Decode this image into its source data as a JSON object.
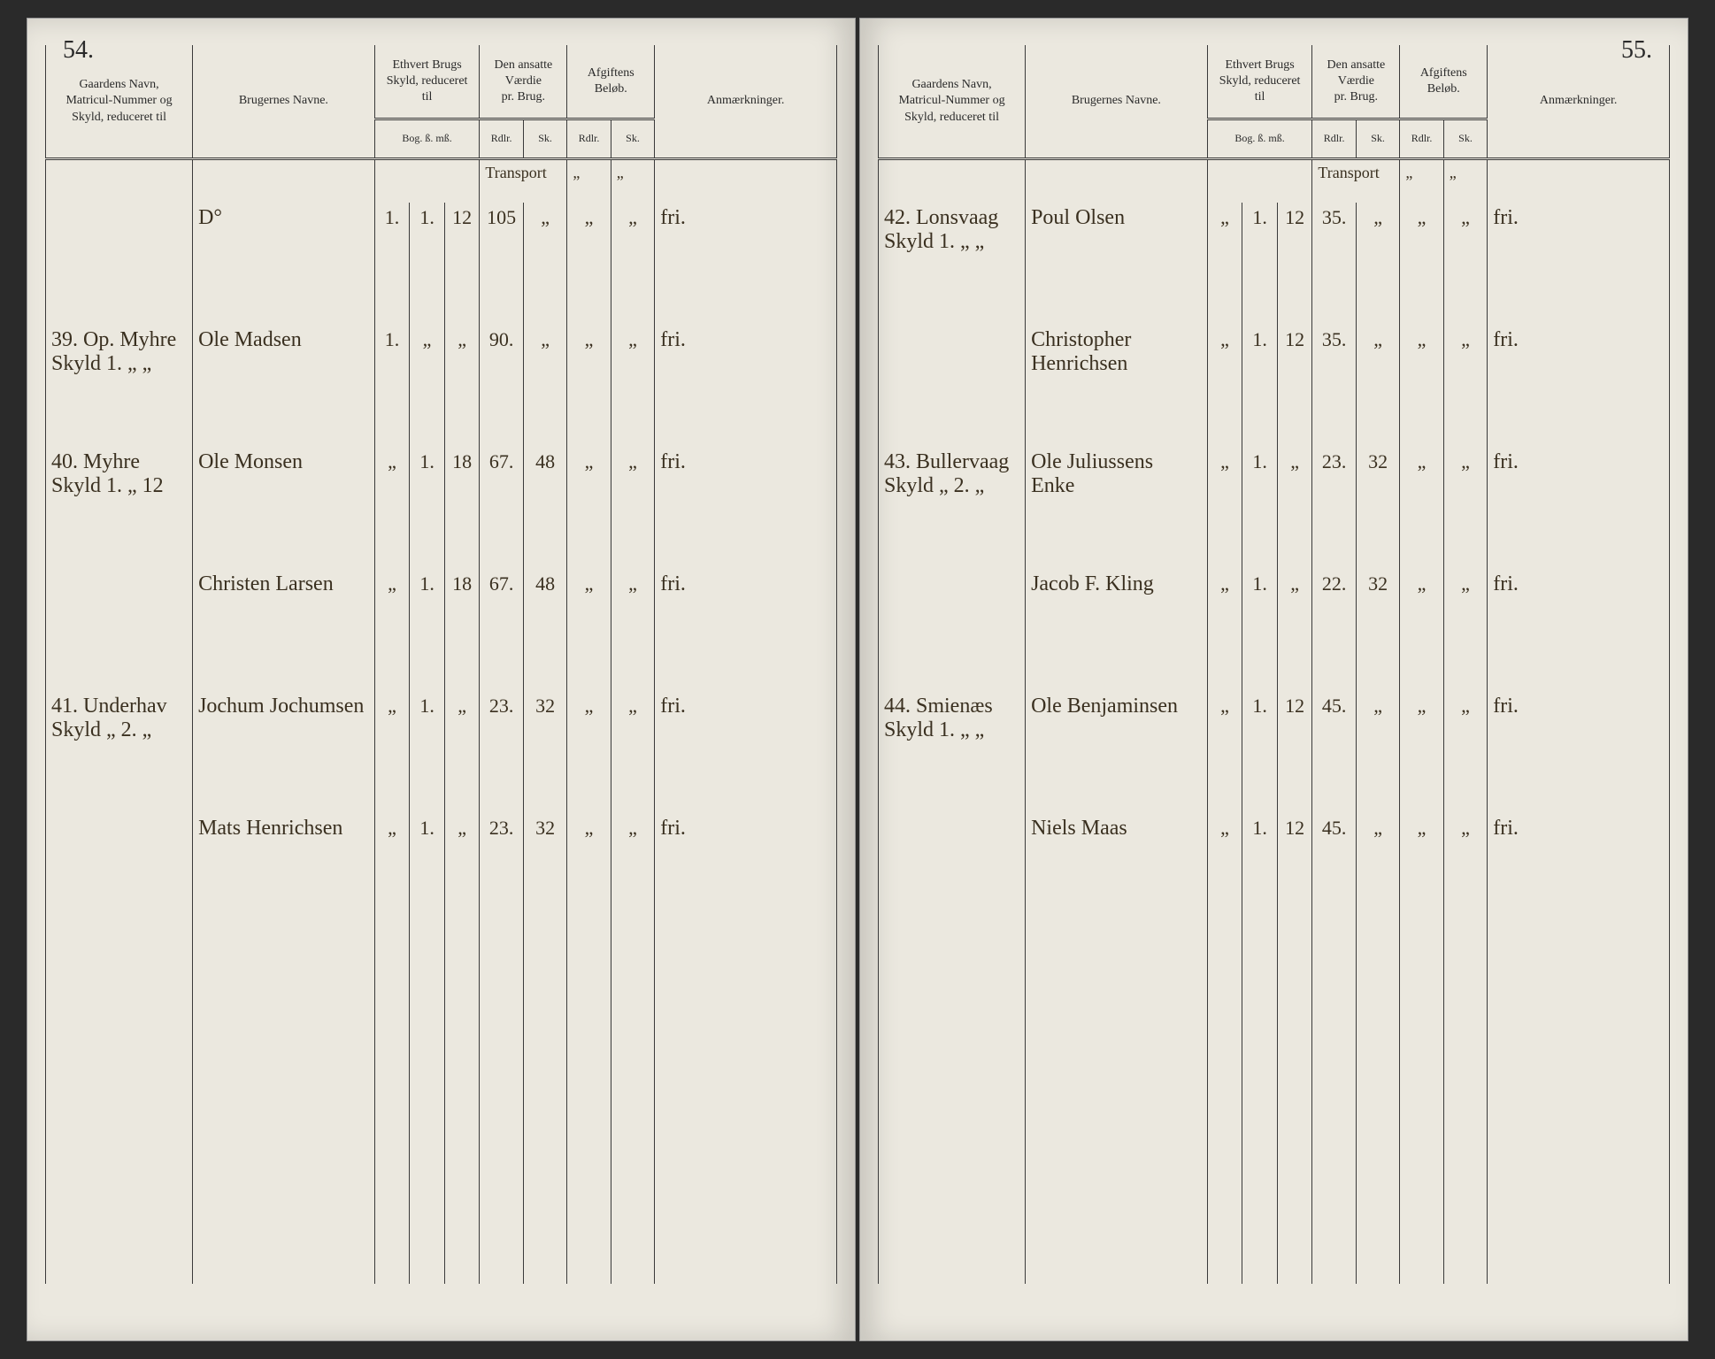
{
  "book": {
    "left_page_number": "54.",
    "right_page_number": "55.",
    "headers": {
      "gaard": "Gaardens Navn,\nMatricul-Nummer og\nSkyld, reduceret til",
      "bruger": "Brugernes Navne.",
      "skyld": "Ethvert Brugs\nSkyld, reduceret\ntil",
      "vaerdi": "Den ansatte\nVærdie\npr. Brug.",
      "afgift": "Afgiftens\nBeløb.",
      "anm": "Anmærkninger.",
      "skyld_sub": "Bog. ß. mß.",
      "rdlr": "Rdlr.",
      "sk": "Sk.",
      "transport": "Transport"
    },
    "left_rows": [
      {
        "gaard": "",
        "bruger": "D°",
        "s1": "1.",
        "s2": "1.",
        "s3": "12",
        "v1": "105",
        "v2": "„",
        "a1": "„",
        "a2": "„",
        "anm": "fri."
      },
      {
        "gaard": "39. Op. Myhre\nSkyld 1. „ „",
        "bruger": "Ole Madsen",
        "s1": "1.",
        "s2": "„",
        "s3": "„",
        "v1": "90.",
        "v2": "„",
        "a1": "„",
        "a2": "„",
        "anm": "fri."
      },
      {
        "gaard": "40. Myhre\nSkyld 1. „ 12",
        "bruger": "Ole Monsen",
        "s1": "„",
        "s2": "1.",
        "s3": "18",
        "v1": "67.",
        "v2": "48",
        "a1": "„",
        "a2": "„",
        "anm": "fri."
      },
      {
        "gaard": "",
        "bruger": "Christen Larsen",
        "s1": "„",
        "s2": "1.",
        "s3": "18",
        "v1": "67.",
        "v2": "48",
        "a1": "„",
        "a2": "„",
        "anm": "fri."
      },
      {
        "gaard": "41. Underhav\nSkyld „ 2. „",
        "bruger": "Jochum Jochumsen",
        "s1": "„",
        "s2": "1.",
        "s3": "„",
        "v1": "23.",
        "v2": "32",
        "a1": "„",
        "a2": "„",
        "anm": "fri."
      },
      {
        "gaard": "",
        "bruger": "Mats Henrichsen",
        "s1": "„",
        "s2": "1.",
        "s3": "„",
        "v1": "23.",
        "v2": "32",
        "a1": "„",
        "a2": "„",
        "anm": "fri."
      }
    ],
    "right_rows": [
      {
        "gaard": "42. Lonsvaag\nSkyld 1. „ „",
        "bruger": "Poul Olsen",
        "s1": "„",
        "s2": "1.",
        "s3": "12",
        "v1": "35.",
        "v2": "„",
        "a1": "„",
        "a2": "„",
        "anm": "fri."
      },
      {
        "gaard": "",
        "bruger": "Christopher Henrichsen",
        "s1": "„",
        "s2": "1.",
        "s3": "12",
        "v1": "35.",
        "v2": "„",
        "a1": "„",
        "a2": "„",
        "anm": "fri."
      },
      {
        "gaard": "43. Bullervaag\nSkyld „ 2. „",
        "bruger": "Ole Juliussens\nEnke",
        "s1": "„",
        "s2": "1.",
        "s3": "„",
        "v1": "23.",
        "v2": "32",
        "a1": "„",
        "a2": "„",
        "anm": "fri."
      },
      {
        "gaard": "",
        "bruger": "Jacob F. Kling",
        "s1": "„",
        "s2": "1.",
        "s3": "„",
        "v1": "22.",
        "v2": "32",
        "a1": "„",
        "a2": "„",
        "anm": "fri."
      },
      {
        "gaard": "44. Smienæs\nSkyld 1. „ „",
        "bruger": "Ole Benjaminsen",
        "s1": "„",
        "s2": "1.",
        "s3": "12",
        "v1": "45.",
        "v2": "„",
        "a1": "„",
        "a2": "„",
        "anm": "fri."
      },
      {
        "gaard": "",
        "bruger": "Niels Maas",
        "s1": "„",
        "s2": "1.",
        "s3": "12",
        "v1": "45.",
        "v2": "„",
        "a1": "„",
        "a2": "„",
        "anm": "fri."
      }
    ]
  },
  "colors": {
    "paper": "#ebe8df",
    "ink": "#3a3020",
    "rule": "#3a3a3a",
    "background": "#1a1a1a"
  }
}
